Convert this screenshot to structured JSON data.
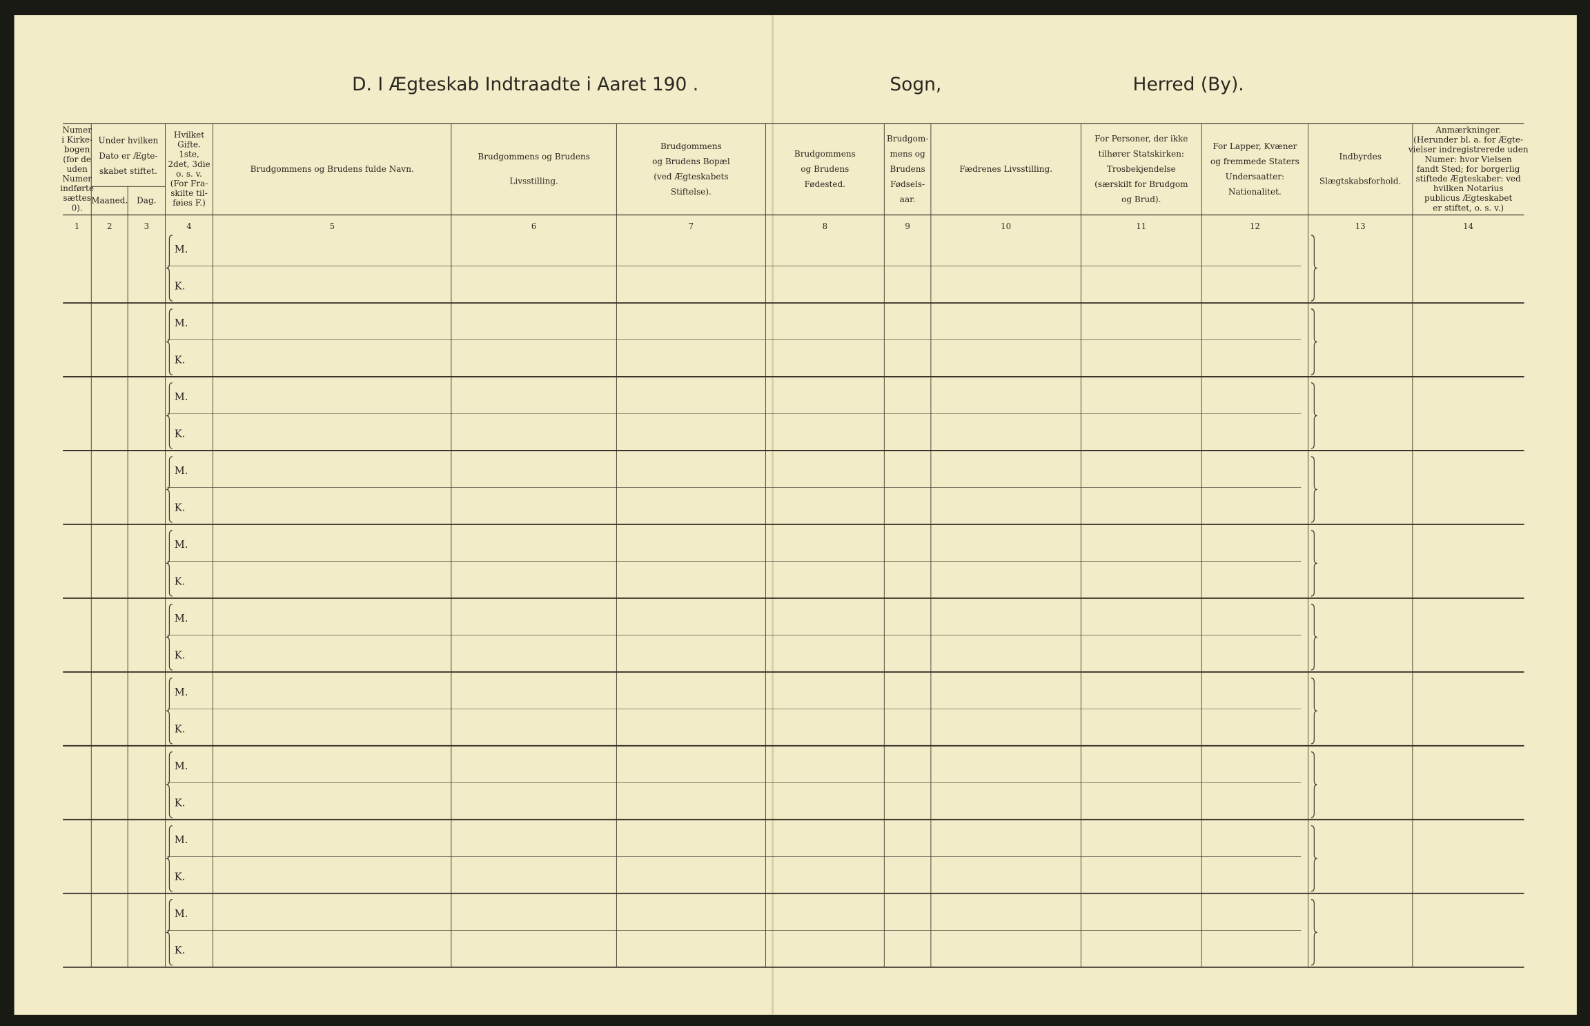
{
  "header": {
    "title": "D.  I Ægteskab Indtraadte i Aaret 190  .",
    "parish": "Sogn,",
    "district": "Herred (By)."
  },
  "table": {
    "columns": [
      {
        "lines": [
          "Numer",
          "i Kirke-",
          "bogen",
          "(for de",
          "uden",
          "Numer",
          "indførte",
          "sættes",
          "0)."
        ]
      },
      {
        "lines": [
          "Under hvilken",
          "Dato er Ægte-",
          "skabet stiftet."
        ],
        "sub": [
          "Maaned.",
          "Dag."
        ]
      },
      {
        "lines": [
          "Hvilket",
          "Gifte.",
          "1ste,",
          "2det, 3die",
          "o. s. v.",
          "(For Fra-",
          "skilte til-",
          "føies F.)"
        ]
      },
      {
        "lines": [
          "Brudgommens og Brudens fulde Navn."
        ]
      },
      {
        "lines": [
          "Brudgommens og Brudens",
          "Livsstilling."
        ]
      },
      {
        "lines": [
          "Brudgommens",
          "og Brudens Bopæl",
          "(ved Ægteskabets",
          "Stiftelse)."
        ]
      },
      {
        "lines": [
          "Brudgommens",
          "og Brudens",
          "Fødested."
        ]
      },
      {
        "lines": [
          "Brudgom-",
          "mens og",
          "Brudens",
          "Fødsels-",
          "aar."
        ]
      },
      {
        "lines": [
          "Fædrenes Livsstilling."
        ]
      },
      {
        "lines": [
          "For Personer, der ikke",
          "tilhører Statskirken:",
          "Trosbekjendelse",
          "(særskilt for Brudgom",
          "og Brud)."
        ]
      },
      {
        "lines": [
          "For Lapper, Kvæner",
          "og fremmede Staters",
          "Undersaatter:",
          "Nationalitet."
        ]
      },
      {
        "lines": [
          "Indbyrdes",
          "Slægtskabsforhold."
        ]
      },
      {
        "lines": [
          "Anmærkninger.",
          "(Herunder bl. a. for Ægte-",
          "vielser indregistrerede uden",
          "Numer: hvor Vielsen",
          "fandt Sted; for borgerlig",
          "stiftede Ægteskaber: ved",
          "hvilken Notarius",
          "publicus Ægteskabet",
          "er stiftet, o. s. v.)"
        ]
      }
    ],
    "numbers": [
      "1",
      "2",
      "3",
      "4",
      "5",
      "6",
      "7",
      "8",
      "9",
      "10",
      "11",
      "12",
      "13",
      "14"
    ],
    "rows": [
      {
        "m": "M.",
        "k": "K."
      },
      {
        "m": "M.",
        "k": "K."
      },
      {
        "m": "M.",
        "k": "K."
      },
      {
        "m": "M.",
        "k": "K."
      },
      {
        "m": "M.",
        "k": "K."
      },
      {
        "m": "M.",
        "k": "K."
      },
      {
        "m": "M.",
        "k": "K."
      },
      {
        "m": "M.",
        "k": "K."
      },
      {
        "m": "M.",
        "k": "K."
      },
      {
        "m": "M.",
        "k": "K."
      }
    ]
  }
}
